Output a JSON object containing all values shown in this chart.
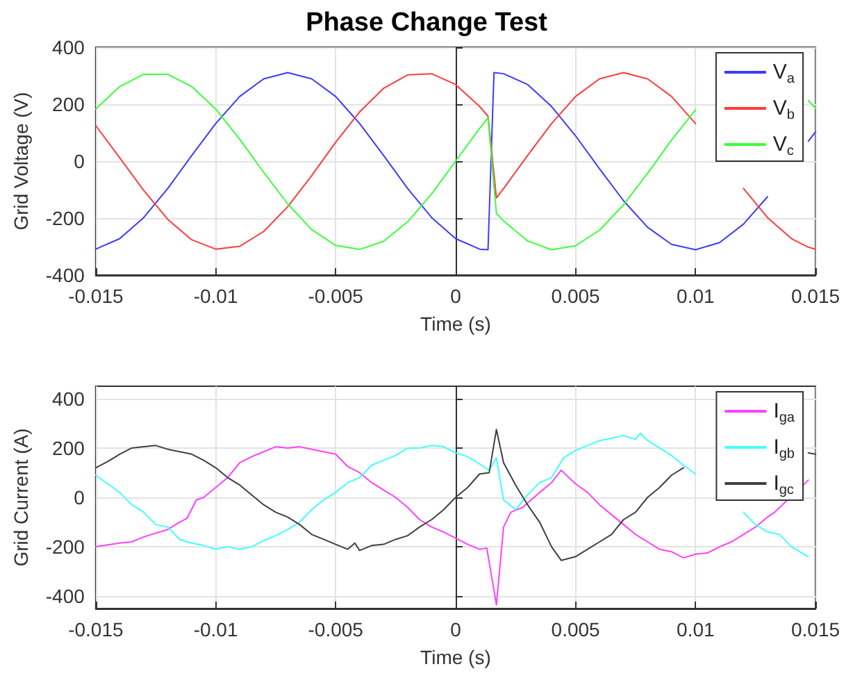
{
  "chart_data": [
    {
      "type": "line",
      "title": "Phase Change Test",
      "xlabel": "Time (s)",
      "ylabel": "Grid Voltage (V)",
      "xlim": [
        -0.015,
        0.015
      ],
      "xticks": [
        -0.015,
        -0.01,
        -0.005,
        0,
        0.005,
        0.01,
        0.015
      ],
      "ylim": [
        -400,
        400
      ],
      "yticks": [
        -400,
        -200,
        0,
        200,
        400
      ],
      "grid": true,
      "legend": "top right",
      "line_style": "solid",
      "marker": "none",
      "series": [
        {
          "name": "V$_{a}$",
          "color": "#3b3bff",
          "x": [
            -0.015,
            -0.014,
            -0.013,
            -0.012,
            -0.011,
            -0.01,
            -0.009,
            -0.008,
            -0.007,
            -0.006,
            -0.005,
            -0.004,
            -0.003,
            -0.002,
            -0.001,
            0,
            0.001,
            0.00135,
            0.0016,
            0.002,
            0.003,
            0.004,
            0.005,
            0.006,
            0.007,
            0.008,
            0.009,
            0.01,
            0.011,
            0.012,
            0.013,
            0.014,
            0.0147,
            0.015
          ],
          "values": [
            -309,
            -272,
            -198,
            -96,
            20,
            132,
            227,
            289,
            311,
            289,
            227,
            132,
            20,
            -96,
            -198,
            -272,
            -309,
            -311,
            311,
            307,
            269,
            192,
            89,
            -27,
            -139,
            -232,
            -292,
            -311,
            -286,
            -221,
            -125,
            null,
            70,
            103
          ]
        },
        {
          "name": "V$_{b}$",
          "color": "#ff3b3b",
          "x": [
            -0.015,
            -0.014,
            -0.013,
            -0.012,
            -0.011,
            -0.01,
            -0.009,
            -0.008,
            -0.007,
            -0.006,
            -0.005,
            -0.004,
            -0.003,
            -0.002,
            -0.001,
            0,
            0.001,
            0.00135,
            0.0017,
            0.002,
            0.003,
            0.004,
            0.005,
            0.006,
            0.007,
            0.008,
            0.009,
            0.01,
            0.011,
            0.012,
            0.013,
            0.014,
            0.0147,
            0.015
          ],
          "values": [
            125,
            12,
            -103,
            -204,
            -276,
            -309,
            -299,
            -247,
            -160,
            -51,
            66,
            173,
            256,
            303,
            307,
            269,
            192,
            158,
            -129,
            -96,
            20,
            132,
            227,
            289,
            311,
            289,
            227,
            132,
            null,
            -96,
            -198,
            -272,
            -302,
            -309
          ]
        },
        {
          "name": "V$_{c}$",
          "color": "#3bff3b",
          "x": [
            -0.015,
            -0.014,
            -0.013,
            -0.012,
            -0.011,
            -0.01,
            -0.009,
            -0.008,
            -0.007,
            -0.006,
            -0.005,
            -0.004,
            -0.003,
            -0.002,
            -0.001,
            0,
            0.001,
            0.00135,
            0.0017,
            0.002,
            0.003,
            0.004,
            0.005,
            0.006,
            0.007,
            0.008,
            0.009,
            0.01,
            0.011,
            0.012,
            0.013,
            0.014,
            0.0147,
            0.015
          ],
          "values": [
            183,
            262,
            305,
            305,
            262,
            183,
            77,
            -39,
            -150,
            -240,
            -296,
            -310,
            -281,
            -213,
            -115,
            0,
            115,
            152,
            -183,
            -210,
            -280,
            -311,
            -297,
            -242,
            -153,
            -43,
            74,
            180,
            null,
            null,
            null,
            null,
            213,
            186
          ]
        }
      ]
    },
    {
      "type": "line",
      "xlabel": "Time (s)",
      "ylabel": "Grid Current (A)",
      "xlim": [
        -0.015,
        0.015
      ],
      "xticks": [
        -0.015,
        -0.01,
        -0.005,
        0,
        0.005,
        0.01,
        0.015
      ],
      "ylim": [
        -450,
        450
      ],
      "yticks": [
        -400,
        -200,
        0,
        200,
        400
      ],
      "grid": true,
      "legend": "top right",
      "line_style": "solid",
      "marker": "none",
      "series": [
        {
          "name": "I$_{ga}$",
          "color": "#ff40ff",
          "x": [
            -0.015,
            -0.014,
            -0.0135,
            -0.013,
            -0.012,
            -0.0115,
            -0.0112,
            -0.0108,
            -0.0105,
            -0.01,
            -0.0095,
            -0.009,
            -0.0085,
            -0.008,
            -0.0075,
            -0.007,
            -0.0065,
            -0.006,
            -0.0055,
            -0.005,
            -0.0045,
            -0.004,
            -0.0035,
            -0.003,
            -0.0025,
            -0.002,
            -0.0015,
            -0.001,
            -0.0005,
            0,
            0.0005,
            0.001,
            0.0013,
            0.0017,
            0.002,
            0.0023,
            0.0028,
            0.0035,
            0.004,
            0.0044,
            0.005,
            0.0055,
            0.006,
            0.0065,
            0.007,
            0.0075,
            0.008,
            0.0085,
            0.009,
            0.0095,
            0.01,
            0.0105,
            0.011,
            0.0115,
            0.012,
            0.0125,
            0.013,
            0.0133,
            0.0147
          ],
          "values": [
            -200,
            -185,
            -180,
            -160,
            -130,
            -100,
            -85,
            -10,
            0,
            40,
            80,
            140,
            165,
            185,
            205,
            200,
            205,
            195,
            185,
            175,
            125,
            100,
            60,
            30,
            0,
            -40,
            -90,
            -120,
            -140,
            -165,
            -190,
            -210,
            -205,
            -435,
            -120,
            -60,
            -40,
            20,
            60,
            110,
            55,
            20,
            -30,
            -70,
            -110,
            -150,
            -180,
            -210,
            -220,
            -245,
            -230,
            -225,
            -200,
            -180,
            -150,
            -120,
            -80,
            -60,
            70
          ]
        },
        {
          "name": "I$_{gb}$",
          "color": "#40ffff",
          "x": [
            -0.015,
            -0.0145,
            -0.014,
            -0.0135,
            -0.013,
            -0.0125,
            -0.012,
            -0.0115,
            -0.011,
            -0.0105,
            -0.01,
            -0.0095,
            -0.009,
            -0.0085,
            -0.008,
            -0.0075,
            -0.007,
            -0.0065,
            -0.006,
            -0.0055,
            -0.005,
            -0.0045,
            -0.004,
            -0.0035,
            -0.003,
            -0.0025,
            -0.002,
            -0.0015,
            -0.001,
            -0.0005,
            0,
            0.0005,
            0.001,
            0.0014,
            0.0017,
            0.002,
            0.0025,
            0.003,
            0.0035,
            0.004,
            0.0045,
            0.005,
            0.0055,
            0.006,
            0.0065,
            0.007,
            0.0075,
            0.0077,
            0.008,
            0.0085,
            0.009,
            0.0095,
            0.01,
            0.011,
            0.012,
            0.0125,
            0.013,
            0.0135,
            0.014,
            0.0147
          ],
          "values": [
            90,
            55,
            20,
            -30,
            -60,
            -110,
            -120,
            -170,
            -185,
            -195,
            -210,
            -200,
            -210,
            -200,
            -175,
            -155,
            -130,
            -100,
            -50,
            -10,
            20,
            60,
            80,
            130,
            150,
            170,
            200,
            200,
            210,
            205,
            180,
            165,
            135,
            110,
            160,
            -10,
            -50,
            10,
            60,
            80,
            160,
            190,
            210,
            230,
            240,
            250,
            235,
            260,
            230,
            200,
            170,
            130,
            95,
            null,
            -60,
            -110,
            -140,
            -150,
            -200,
            -240
          ]
        },
        {
          "name": "I$_{gc}$",
          "color": "#404040",
          "x": [
            -0.015,
            -0.0145,
            -0.014,
            -0.0135,
            -0.013,
            -0.0125,
            -0.012,
            -0.0115,
            -0.011,
            -0.0105,
            -0.01,
            -0.0095,
            -0.009,
            -0.0085,
            -0.008,
            -0.0075,
            -0.007,
            -0.0065,
            -0.006,
            -0.0055,
            -0.005,
            -0.0045,
            -0.0042,
            -0.004,
            -0.0035,
            -0.003,
            -0.0025,
            -0.002,
            -0.0015,
            -0.001,
            -0.0005,
            0,
            0.0005,
            0.001,
            0.0014,
            0.0017,
            0.002,
            0.0025,
            0.003,
            0.0035,
            0.004,
            0.0044,
            0.005,
            0.0055,
            0.006,
            0.0065,
            0.007,
            0.0075,
            0.008,
            0.0085,
            0.009,
            0.0095,
            0.012,
            0.0147,
            0.015
          ],
          "values": [
            120,
            145,
            175,
            200,
            205,
            210,
            195,
            185,
            175,
            150,
            120,
            80,
            50,
            10,
            -30,
            -60,
            -80,
            -110,
            -150,
            -170,
            -190,
            -210,
            -185,
            -215,
            -195,
            -190,
            -170,
            -155,
            -120,
            -90,
            -50,
            0,
            40,
            95,
            100,
            275,
            140,
            50,
            -30,
            -100,
            -200,
            -255,
            -240,
            -210,
            -180,
            -150,
            -90,
            -60,
            0,
            40,
            90,
            120,
            null,
            180,
            175
          ]
        }
      ]
    }
  ]
}
